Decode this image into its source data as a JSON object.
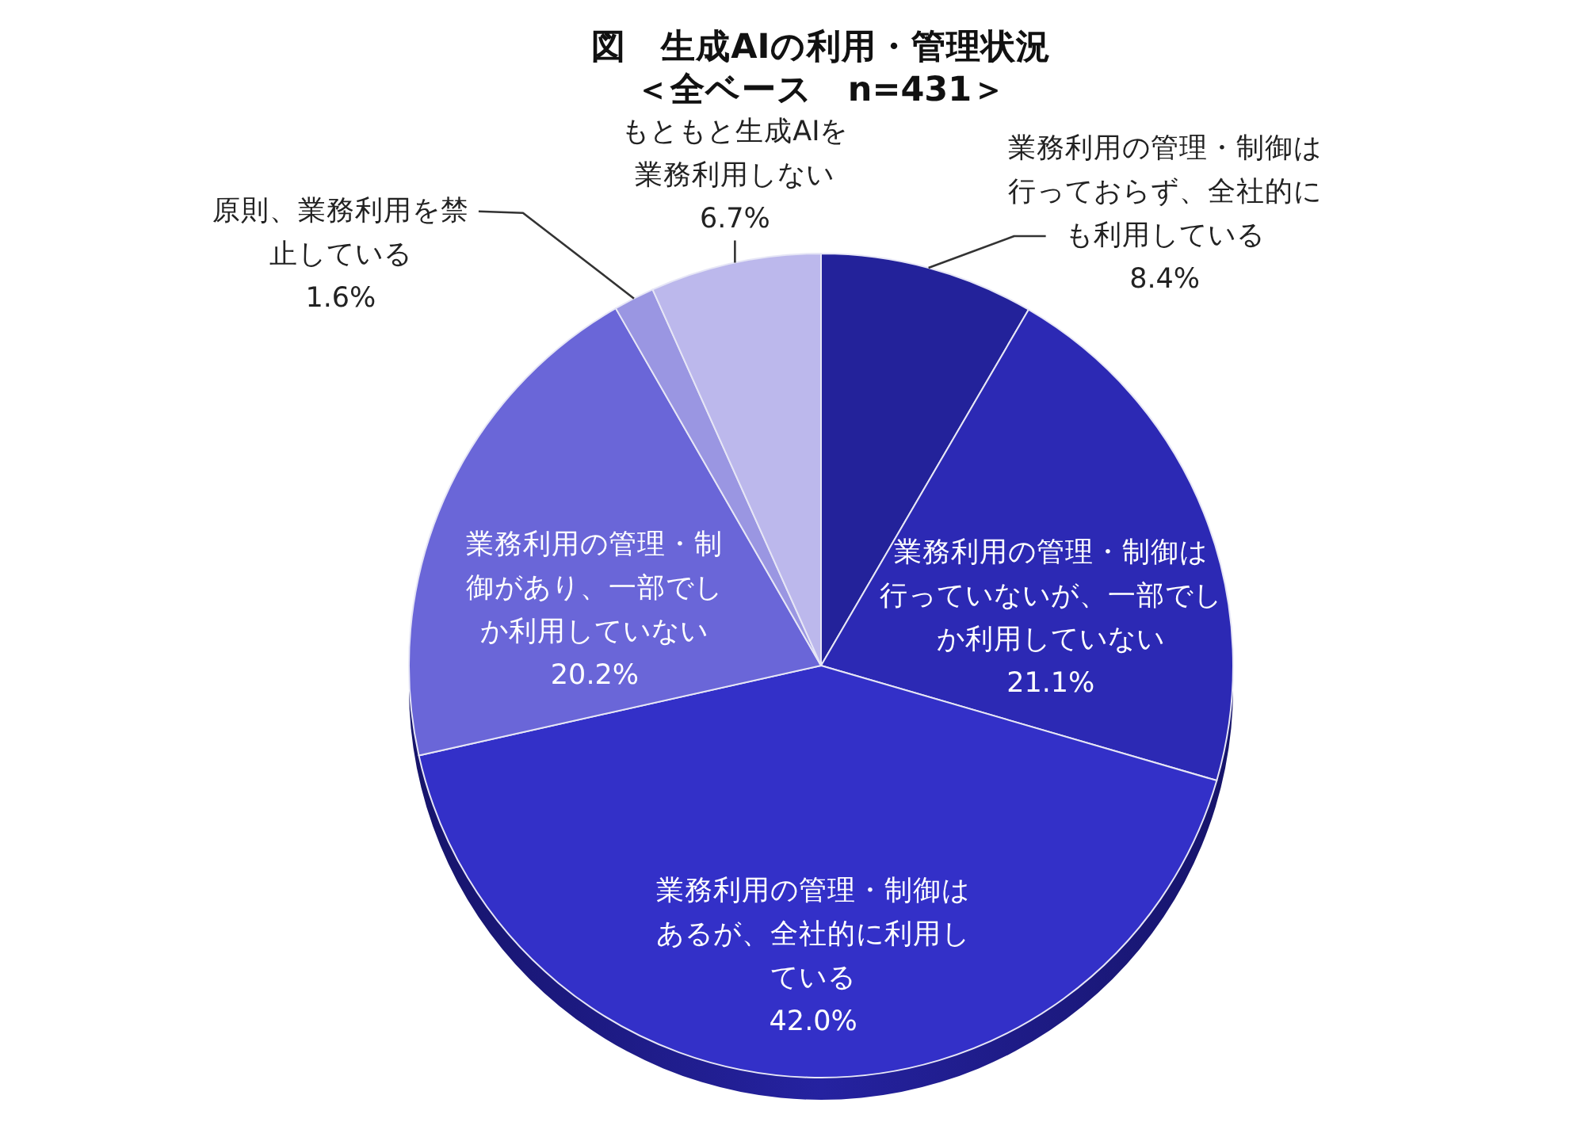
{
  "chart_data": {
    "type": "pie",
    "title": "図　生成AIの利用・管理状況",
    "subtitle": "＜全ベース　n=431＞",
    "categories": [
      "業務利用の管理・制御は行っておらず、全社的にも利用している",
      "業務利用の管理・制御は行っていないが、一部でしか利用していない",
      "業務利用の管理・制御はあるが、全社的に利用している",
      "業務利用の管理・制御があり、一部でしか利用していない",
      "原則、業務利用を禁止している",
      "もともと生成AIを業務利用しない"
    ],
    "values": [
      8.4,
      21.1,
      42.0,
      20.2,
      1.6,
      6.7
    ],
    "colors": [
      "#23229a",
      "#2c29b4",
      "#3330c8",
      "#6a66d8",
      "#9a96e2",
      "#bcb8ec"
    ],
    "value_labels": [
      "8.4%",
      "21.1%",
      "42.0%",
      "20.2%",
      "1.6%",
      "6.7%"
    ]
  }
}
